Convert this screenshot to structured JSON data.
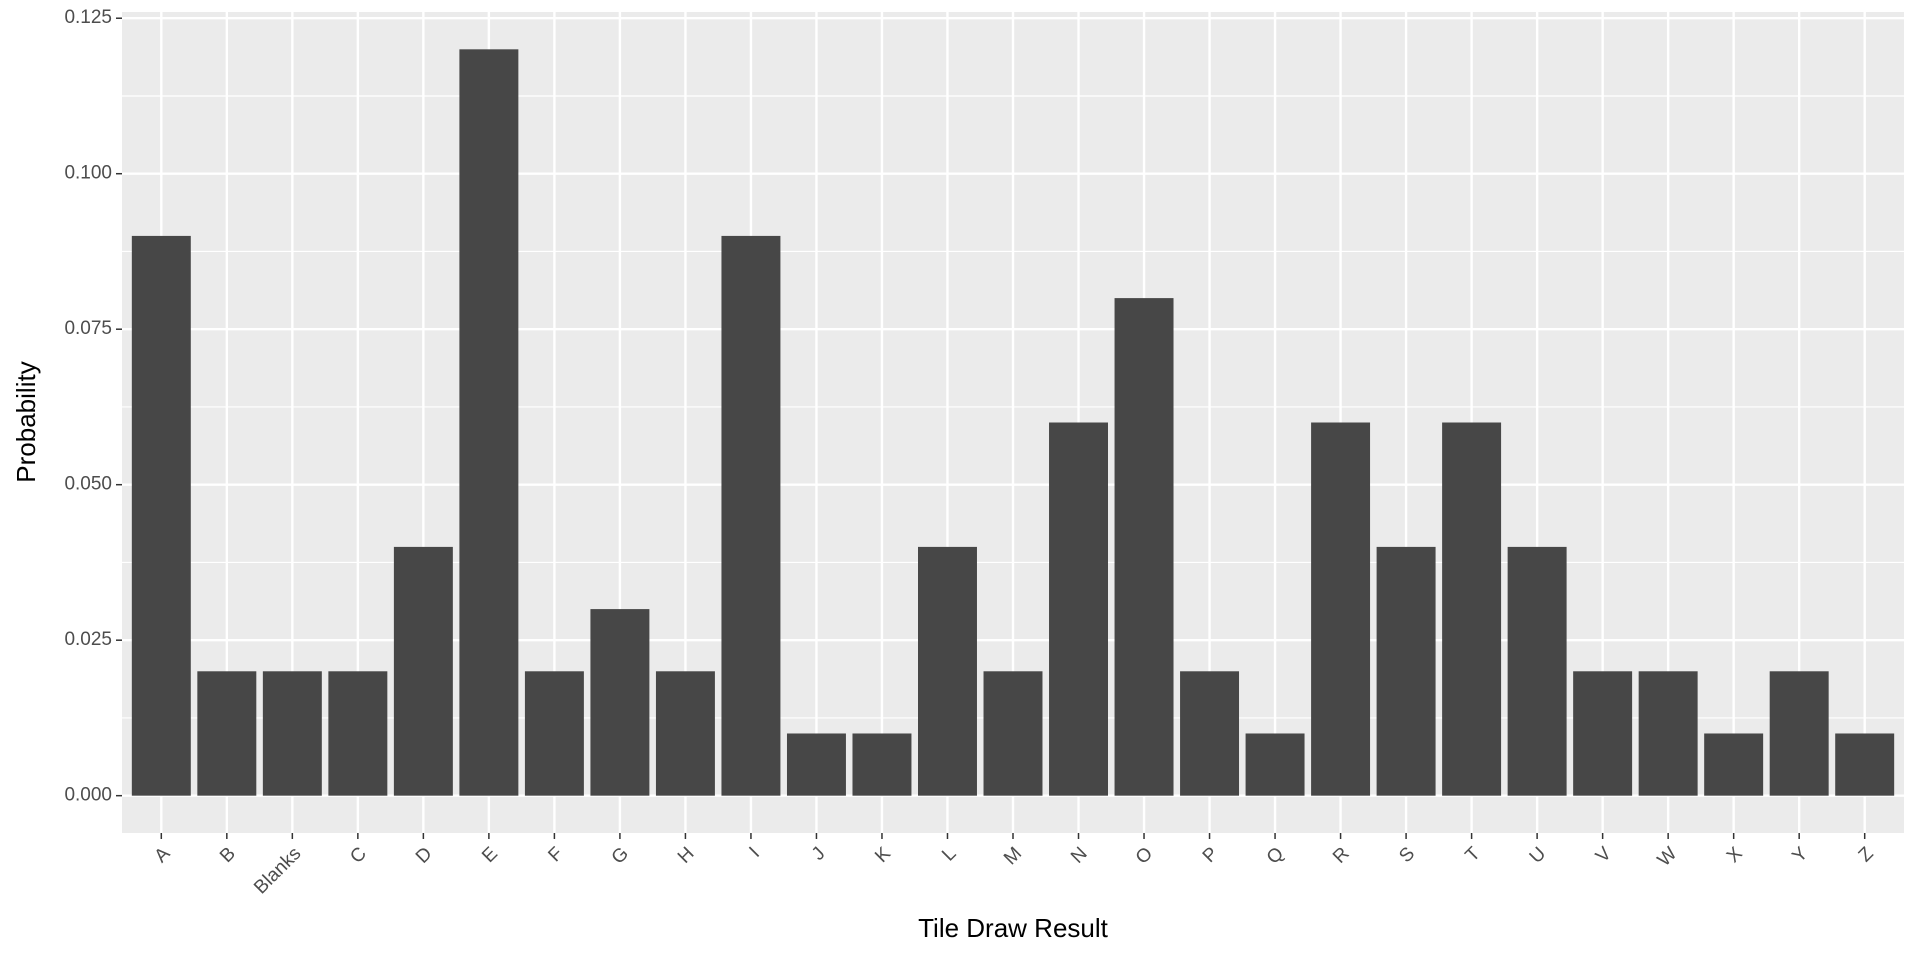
{
  "chart_data": {
    "type": "bar",
    "x_label": "Tile Draw Result",
    "y_label": "Probability",
    "categories": [
      "A",
      "B",
      "Blanks",
      "C",
      "D",
      "E",
      "F",
      "G",
      "H",
      "I",
      "J",
      "K",
      "L",
      "M",
      "N",
      "O",
      "P",
      "Q",
      "R",
      "S",
      "T",
      "U",
      "V",
      "W",
      "X",
      "Y",
      "Z"
    ],
    "values": [
      0.09,
      0.02,
      0.02,
      0.02,
      0.04,
      0.12,
      0.02,
      0.03,
      0.02,
      0.09,
      0.01,
      0.01,
      0.04,
      0.02,
      0.06,
      0.08,
      0.02,
      0.01,
      0.06,
      0.04,
      0.06,
      0.04,
      0.02,
      0.02,
      0.01,
      0.02,
      0.01
    ],
    "color": "#474747",
    "ylim": [
      -0.006,
      0.126
    ],
    "yticks": [
      {
        "value": 0,
        "label": "0.000"
      },
      {
        "value": 0.025,
        "label": "0.025"
      },
      {
        "value": 0.05,
        "label": "0.050"
      },
      {
        "value": 0.075,
        "label": "0.075"
      },
      {
        "value": 0.1,
        "label": "0.100"
      },
      {
        "value": 0.125,
        "label": "0.125"
      }
    ],
    "grid": true
  }
}
